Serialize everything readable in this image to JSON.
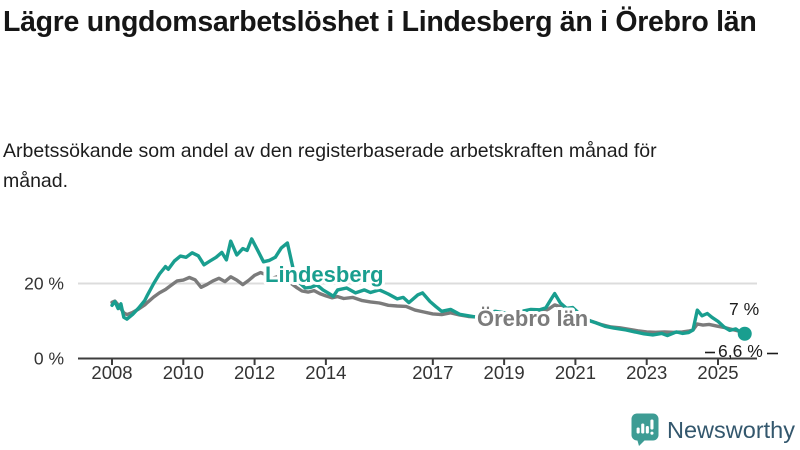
{
  "title": "Lägre ungdomsarbetslöshet i Lindesberg än i Örebro län",
  "subtitle": "Arbetssökande som andel av den registerbaserade arbetskraften månad för månad.",
  "footer": {
    "brand": "Newsworthy",
    "icon": "newsworthy-logo-icon",
    "icon_bg": "#3D9C94",
    "text_color": "#33576D"
  },
  "colors": {
    "lindesberg": "#199E8F",
    "orebro_lan": "#7B7B7B",
    "axis": "#3D3D3D",
    "axis_text": "#333333",
    "grid": "#DCDCDC",
    "end_label_text": "#1C1C1C",
    "title_text": "#161616"
  },
  "chart_data": {
    "type": "line",
    "title": "Lägre ungdomsarbetslöshet i Lindesberg än i Örebro län",
    "xlabel": "",
    "ylabel": "",
    "unit": "%",
    "xlim": [
      2007.9,
      2026.2
    ],
    "ylim": [
      0,
      34
    ],
    "grid": "horizontal-20-only",
    "legend_position": "inline-labels",
    "y_gridlines": [
      20
    ],
    "y_ticks": [
      {
        "value": 0,
        "label": "0 %"
      },
      {
        "value": 20,
        "label": "20 %"
      }
    ],
    "x_ticks": [
      {
        "value": 2008,
        "label": "2008"
      },
      {
        "value": 2010,
        "label": "2010"
      },
      {
        "value": 2012,
        "label": "2012"
      },
      {
        "value": 2014,
        "label": "2014"
      },
      {
        "value": 2017,
        "label": "2017"
      },
      {
        "value": 2019,
        "label": "2019"
      },
      {
        "value": 2021,
        "label": "2021"
      },
      {
        "value": 2023,
        "label": "2023"
      },
      {
        "value": 2025,
        "label": "2025"
      }
    ],
    "series": [
      {
        "name": "Lindesberg",
        "color": "#199E8F",
        "end_label": "6,6 %",
        "end_value": 6.6,
        "end_marker": true,
        "points": [
          [
            2008.0,
            14.2
          ],
          [
            2008.08,
            15.2
          ],
          [
            2008.17,
            13.3
          ],
          [
            2008.25,
            14.6
          ],
          [
            2008.33,
            11.0
          ],
          [
            2008.42,
            10.5
          ],
          [
            2008.58,
            11.8
          ],
          [
            2008.75,
            13.5
          ],
          [
            2008.92,
            15.5
          ],
          [
            2009.0,
            17.0
          ],
          [
            2009.17,
            20.0
          ],
          [
            2009.33,
            22.5
          ],
          [
            2009.5,
            24.5
          ],
          [
            2009.58,
            23.8
          ],
          [
            2009.75,
            26.0
          ],
          [
            2009.92,
            27.3
          ],
          [
            2010.08,
            27.0
          ],
          [
            2010.25,
            28.2
          ],
          [
            2010.42,
            27.4
          ],
          [
            2010.58,
            25.0
          ],
          [
            2010.75,
            26.0
          ],
          [
            2010.92,
            27.0
          ],
          [
            2011.08,
            28.3
          ],
          [
            2011.21,
            26.3
          ],
          [
            2011.33,
            31.3
          ],
          [
            2011.5,
            27.6
          ],
          [
            2011.67,
            29.3
          ],
          [
            2011.79,
            28.8
          ],
          [
            2011.92,
            31.9
          ],
          [
            2012.08,
            29.0
          ],
          [
            2012.25,
            25.8
          ],
          [
            2012.42,
            26.2
          ],
          [
            2012.58,
            27.0
          ],
          [
            2012.75,
            29.5
          ],
          [
            2012.92,
            30.8
          ],
          [
            2013.08,
            24.0
          ],
          [
            2013.25,
            20.3
          ],
          [
            2013.42,
            18.8
          ],
          [
            2013.58,
            19.0
          ],
          [
            2013.75,
            19.6
          ],
          [
            2013.92,
            18.3
          ],
          [
            2014.08,
            17.4
          ],
          [
            2014.21,
            16.6
          ],
          [
            2014.33,
            18.3
          ],
          [
            2014.58,
            18.8
          ],
          [
            2014.83,
            17.5
          ],
          [
            2015.08,
            18.3
          ],
          [
            2015.25,
            17.6
          ],
          [
            2015.5,
            18.3
          ],
          [
            2015.75,
            17.2
          ],
          [
            2016.0,
            15.9
          ],
          [
            2016.17,
            16.3
          ],
          [
            2016.33,
            14.9
          ],
          [
            2016.58,
            17.0
          ],
          [
            2016.71,
            17.5
          ],
          [
            2016.92,
            15.2
          ],
          [
            2017.08,
            13.9
          ],
          [
            2017.25,
            12.6
          ],
          [
            2017.5,
            13.1
          ],
          [
            2017.75,
            11.8
          ],
          [
            2018.0,
            11.4
          ],
          [
            2018.25,
            11.0
          ],
          [
            2018.5,
            12.0
          ],
          [
            2018.75,
            12.6
          ],
          [
            2019.0,
            12.2
          ],
          [
            2019.25,
            11.8
          ],
          [
            2019.5,
            12.6
          ],
          [
            2019.75,
            13.1
          ],
          [
            2020.0,
            13.0
          ],
          [
            2020.17,
            13.5
          ],
          [
            2020.33,
            16.0
          ],
          [
            2020.42,
            17.3
          ],
          [
            2020.58,
            14.8
          ],
          [
            2020.75,
            13.4
          ],
          [
            2020.92,
            13.6
          ],
          [
            2021.08,
            12.2
          ],
          [
            2021.25,
            10.9
          ],
          [
            2021.42,
            10.0
          ],
          [
            2021.58,
            9.5
          ],
          [
            2021.83,
            8.6
          ],
          [
            2022.08,
            8.1
          ],
          [
            2022.42,
            7.6
          ],
          [
            2022.67,
            7.1
          ],
          [
            2022.92,
            6.6
          ],
          [
            2023.17,
            6.3
          ],
          [
            2023.42,
            6.7
          ],
          [
            2023.58,
            6.1
          ],
          [
            2023.83,
            7.1
          ],
          [
            2024.0,
            6.7
          ],
          [
            2024.17,
            6.9
          ],
          [
            2024.3,
            7.6
          ],
          [
            2024.42,
            12.9
          ],
          [
            2024.55,
            11.4
          ],
          [
            2024.7,
            12.0
          ],
          [
            2024.83,
            11.0
          ],
          [
            2025.0,
            9.9
          ],
          [
            2025.17,
            8.4
          ],
          [
            2025.33,
            7.5
          ],
          [
            2025.5,
            7.9
          ],
          [
            2025.6,
            7.2
          ],
          [
            2025.75,
            6.6
          ]
        ]
      },
      {
        "name": "Örebro län",
        "color": "#7B7B7B",
        "end_label": "7 %",
        "end_value": 7.0,
        "end_marker": false,
        "points": [
          [
            2008.0,
            15.0
          ],
          [
            2008.08,
            15.3
          ],
          [
            2008.17,
            14.3
          ],
          [
            2008.33,
            12.2
          ],
          [
            2008.42,
            11.7
          ],
          [
            2008.58,
            12.3
          ],
          [
            2008.75,
            13.2
          ],
          [
            2008.92,
            14.3
          ],
          [
            2009.0,
            15.0
          ],
          [
            2009.17,
            16.4
          ],
          [
            2009.33,
            17.5
          ],
          [
            2009.5,
            18.4
          ],
          [
            2009.67,
            19.6
          ],
          [
            2009.83,
            20.7
          ],
          [
            2010.0,
            20.9
          ],
          [
            2010.17,
            21.6
          ],
          [
            2010.33,
            21.0
          ],
          [
            2010.5,
            19.0
          ],
          [
            2010.67,
            19.8
          ],
          [
            2010.83,
            20.7
          ],
          [
            2011.0,
            21.4
          ],
          [
            2011.17,
            20.5
          ],
          [
            2011.33,
            21.8
          ],
          [
            2011.5,
            20.9
          ],
          [
            2011.67,
            19.7
          ],
          [
            2011.83,
            20.8
          ],
          [
            2012.0,
            22.2
          ],
          [
            2012.17,
            22.9
          ],
          [
            2012.33,
            22.3
          ],
          [
            2012.5,
            21.4
          ],
          [
            2012.67,
            21.9
          ],
          [
            2012.83,
            21.3
          ],
          [
            2013.0,
            20.2
          ],
          [
            2013.17,
            19.0
          ],
          [
            2013.33,
            18.0
          ],
          [
            2013.5,
            17.7
          ],
          [
            2013.67,
            18.1
          ],
          [
            2013.83,
            17.3
          ],
          [
            2014.0,
            16.7
          ],
          [
            2014.17,
            16.2
          ],
          [
            2014.33,
            16.5
          ],
          [
            2014.5,
            16.0
          ],
          [
            2014.75,
            16.3
          ],
          [
            2015.0,
            15.5
          ],
          [
            2015.25,
            15.1
          ],
          [
            2015.5,
            14.8
          ],
          [
            2015.75,
            14.2
          ],
          [
            2016.0,
            14.0
          ],
          [
            2016.25,
            13.9
          ],
          [
            2016.5,
            12.9
          ],
          [
            2016.75,
            12.4
          ],
          [
            2017.0,
            11.9
          ],
          [
            2017.25,
            11.7
          ],
          [
            2017.5,
            12.2
          ],
          [
            2017.75,
            11.6
          ],
          [
            2018.0,
            11.2
          ],
          [
            2018.25,
            11.1
          ],
          [
            2018.5,
            11.4
          ],
          [
            2018.75,
            11.0
          ],
          [
            2019.0,
            11.1
          ],
          [
            2019.25,
            11.3
          ],
          [
            2019.5,
            11.6
          ],
          [
            2019.75,
            11.8
          ],
          [
            2020.0,
            12.1
          ],
          [
            2020.25,
            13.2
          ],
          [
            2020.42,
            14.3
          ],
          [
            2020.58,
            13.8
          ],
          [
            2020.75,
            13.2
          ],
          [
            2021.0,
            11.6
          ],
          [
            2021.25,
            10.6
          ],
          [
            2021.5,
            9.8
          ],
          [
            2021.75,
            9.0
          ],
          [
            2022.0,
            8.4
          ],
          [
            2022.25,
            8.2
          ],
          [
            2022.5,
            7.8
          ],
          [
            2022.75,
            7.4
          ],
          [
            2023.0,
            7.1
          ],
          [
            2023.25,
            7.0
          ],
          [
            2023.5,
            7.1
          ],
          [
            2023.75,
            7.0
          ],
          [
            2024.0,
            7.1
          ],
          [
            2024.17,
            7.3
          ],
          [
            2024.3,
            7.6
          ],
          [
            2024.42,
            9.2
          ],
          [
            2024.58,
            8.9
          ],
          [
            2024.75,
            9.1
          ],
          [
            2025.0,
            8.6
          ],
          [
            2025.17,
            8.3
          ],
          [
            2025.33,
            7.9
          ],
          [
            2025.5,
            7.5
          ],
          [
            2025.62,
            7.2
          ],
          [
            2025.75,
            7.0
          ]
        ]
      }
    ]
  }
}
